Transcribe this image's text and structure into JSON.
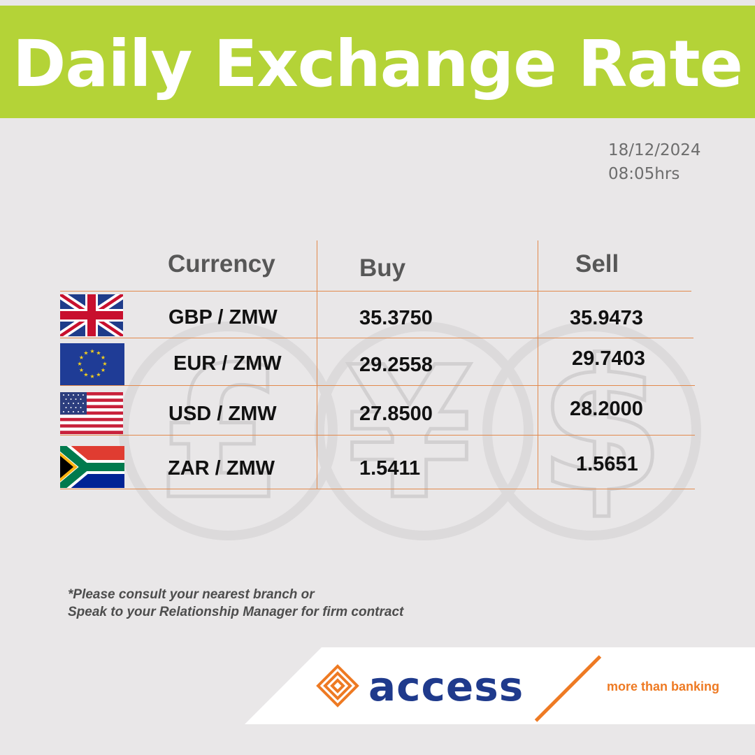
{
  "banner": {
    "title": "Daily Exchange Rate"
  },
  "timestamp": {
    "date": "18/12/2024",
    "time": "08:05hrs"
  },
  "table": {
    "headers": {
      "currency": "Currency",
      "buy": "Buy",
      "sell": "Sell"
    },
    "rows": [
      {
        "flag": "uk-flag-icon",
        "pair": "GBP / ZMW",
        "buy": "35.3750",
        "sell": "35.9473"
      },
      {
        "flag": "eu-flag-icon",
        "pair": "EUR / ZMW",
        "buy": "29.2558",
        "sell": "29.7403"
      },
      {
        "flag": "us-flag-icon",
        "pair": "USD / ZMW",
        "buy": "27.8500",
        "sell": "28.2000"
      },
      {
        "flag": "za-flag-icon",
        "pair": "ZAR / ZMW",
        "buy": "1.5411",
        "sell": "1.5651"
      }
    ]
  },
  "disclaimer": {
    "line1": "*Please consult your nearest branch or",
    "line2": "Speak to your Relationship Manager for firm contract"
  },
  "footer": {
    "brand": "access",
    "slogan": "more than banking"
  },
  "colors": {
    "banner": "#b4d337",
    "background": "#e9e7e8",
    "grid_lines": "#e2894c",
    "brand_blue": "#1f3a8c",
    "brand_orange": "#ee7a23"
  }
}
